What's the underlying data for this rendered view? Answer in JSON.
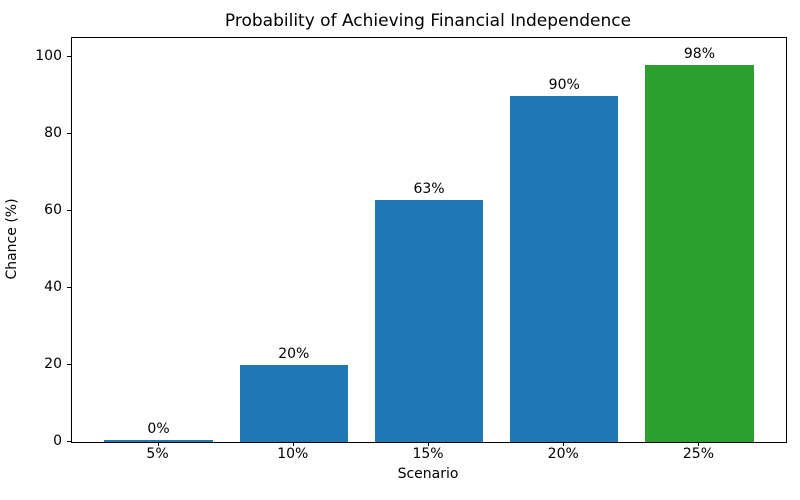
{
  "chart_data": {
    "type": "bar",
    "title": "Probability of Achieving Financial Independence",
    "xlabel": "Scenario",
    "ylabel": "Chance (%)",
    "categories": [
      "5%",
      "10%",
      "15%",
      "20%",
      "25%"
    ],
    "values": [
      0,
      20,
      63,
      90,
      98
    ],
    "bar_labels": [
      "0%",
      "20%",
      "63%",
      "90%",
      "98%"
    ],
    "bar_colors": [
      "#1f77b4",
      "#1f77b4",
      "#1f77b4",
      "#1f77b4",
      "#2ca02c"
    ],
    "ylim": [
      0,
      105
    ],
    "yticks": [
      0,
      20,
      40,
      60,
      80,
      100
    ],
    "grid": false,
    "legend": "none",
    "background_color": "#ffffff",
    "text_color": "#000000"
  }
}
